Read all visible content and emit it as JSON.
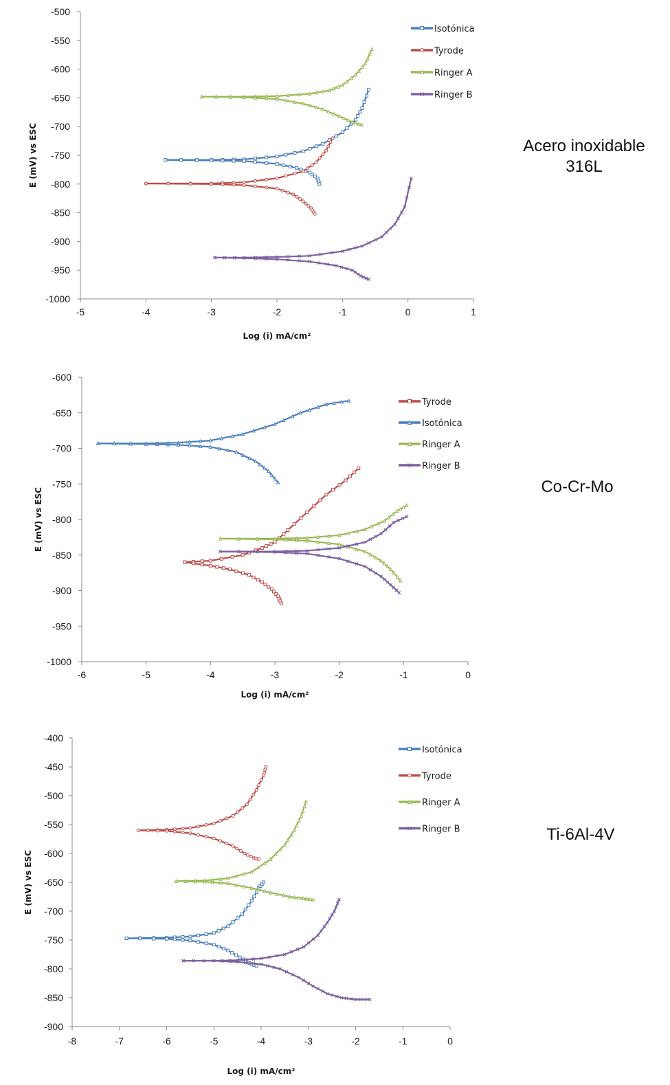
{
  "chart_data": [
    {
      "type": "line",
      "side_label_lines": [
        "Acero inoxidable",
        "316L"
      ],
      "xlabel": "Log (i) mA/cm²",
      "ylabel": "E (mV) vs ESC",
      "xlim": [
        -5,
        1
      ],
      "ylim": [
        -1000,
        -500
      ],
      "xticks": [
        -5,
        -4,
        -3,
        -2,
        -1,
        0,
        1
      ],
      "yticks": [
        -500,
        -550,
        -600,
        -650,
        -700,
        -750,
        -800,
        -850,
        -900,
        -950,
        -1000
      ],
      "grid": false,
      "legend_position": "top-right",
      "series": [
        {
          "name": "Isotónica",
          "color": "#4a7ebb",
          "marker": "square",
          "anodic": [
            [
              -3.7,
              -758
            ],
            [
              -3.0,
              -758
            ],
            [
              -2.5,
              -757
            ],
            [
              -2.0,
              -752
            ],
            [
              -1.6,
              -743
            ],
            [
              -1.3,
              -730
            ],
            [
              -1.0,
              -710
            ],
            [
              -0.8,
              -688
            ],
            [
              -0.7,
              -668
            ],
            [
              -0.6,
              -636
            ]
          ],
          "cathodic": [
            [
              -3.7,
              -758
            ],
            [
              -3.0,
              -759
            ],
            [
              -2.5,
              -760
            ],
            [
              -2.0,
              -765
            ],
            [
              -1.7,
              -772
            ],
            [
              -1.5,
              -780
            ],
            [
              -1.38,
              -790
            ],
            [
              -1.35,
              -800
            ]
          ]
        },
        {
          "name": "Tyrode",
          "color": "#be4b48",
          "marker": "circle",
          "anodic": [
            [
              -4.0,
              -799
            ],
            [
              -3.0,
              -799
            ],
            [
              -2.5,
              -797
            ],
            [
              -2.0,
              -790
            ],
            [
              -1.6,
              -778
            ],
            [
              -1.4,
              -762
            ],
            [
              -1.25,
              -742
            ],
            [
              -1.15,
              -720
            ]
          ],
          "cathodic": [
            [
              -4.0,
              -799
            ],
            [
              -3.0,
              -800
            ],
            [
              -2.5,
              -802
            ],
            [
              -2.0,
              -808
            ],
            [
              -1.75,
              -818
            ],
            [
              -1.6,
              -830
            ],
            [
              -1.48,
              -842
            ],
            [
              -1.42,
              -852
            ]
          ]
        },
        {
          "name": "Ringer A",
          "color": "#98b954",
          "marker": "triangle",
          "anodic": [
            [
              -3.15,
              -648
            ],
            [
              -2.5,
              -648
            ],
            [
              -2.0,
              -647
            ],
            [
              -1.5,
              -643
            ],
            [
              -1.2,
              -637
            ],
            [
              -1.0,
              -628
            ],
            [
              -0.8,
              -610
            ],
            [
              -0.65,
              -590
            ],
            [
              -0.55,
              -565
            ]
          ],
          "cathodic": [
            [
              -3.15,
              -648
            ],
            [
              -2.5,
              -649
            ],
            [
              -2.0,
              -652
            ],
            [
              -1.6,
              -660
            ],
            [
              -1.3,
              -670
            ],
            [
              -1.05,
              -682
            ],
            [
              -0.85,
              -692
            ],
            [
              -0.7,
              -697
            ]
          ]
        },
        {
          "name": "Ringer B",
          "color": "#7d60a0",
          "marker": "x",
          "anodic": [
            [
              -2.95,
              -928
            ],
            [
              -2.5,
              -928
            ],
            [
              -2.0,
              -927
            ],
            [
              -1.5,
              -925
            ],
            [
              -1.0,
              -917
            ],
            [
              -0.7,
              -908
            ],
            [
              -0.4,
              -892
            ],
            [
              -0.2,
              -870
            ],
            [
              -0.05,
              -840
            ],
            [
              0.05,
              -790
            ]
          ],
          "cathodic": [
            [
              -2.95,
              -928
            ],
            [
              -2.5,
              -929
            ],
            [
              -2.0,
              -931
            ],
            [
              -1.5,
              -935
            ],
            [
              -1.1,
              -942
            ],
            [
              -0.85,
              -950
            ],
            [
              -0.72,
              -960
            ],
            [
              -0.6,
              -966
            ]
          ]
        }
      ]
    },
    {
      "type": "line",
      "side_label_lines": [
        "Co-Cr-Mo"
      ],
      "xlabel": "Log (i) mA/cm²",
      "ylabel": "E (mV) vs ESC",
      "xlim": [
        -6,
        0
      ],
      "ylim": [
        -1000,
        -600
      ],
      "xticks": [
        -6,
        -5,
        -4,
        -3,
        -2,
        -1,
        0
      ],
      "yticks": [
        -600,
        -650,
        -700,
        -750,
        -800,
        -850,
        -900,
        -950,
        -1000
      ],
      "grid": false,
      "legend_position": "top-right",
      "series": [
        {
          "name": "Tyrode",
          "color": "#be4b48",
          "marker": "square",
          "anodic": [
            [
              -4.4,
              -860
            ],
            [
              -4.0,
              -858
            ],
            [
              -3.5,
              -850
            ],
            [
              -3.2,
              -840
            ],
            [
              -3.0,
              -832
            ],
            [
              -2.8,
              -815
            ],
            [
              -2.5,
              -790
            ],
            [
              -2.2,
              -765
            ],
            [
              -1.9,
              -745
            ],
            [
              -1.7,
              -728
            ]
          ],
          "cathodic": [
            [
              -4.4,
              -860
            ],
            [
              -4.0,
              -865
            ],
            [
              -3.7,
              -870
            ],
            [
              -3.4,
              -878
            ],
            [
              -3.2,
              -888
            ],
            [
              -3.05,
              -898
            ],
            [
              -2.95,
              -908
            ],
            [
              -2.9,
              -918
            ]
          ]
        },
        {
          "name": "Isotónica",
          "color": "#4a7ebb",
          "marker": "triangle",
          "anodic": [
            [
              -5.75,
              -693
            ],
            [
              -5.0,
              -693
            ],
            [
              -4.5,
              -692
            ],
            [
              -4.0,
              -689
            ],
            [
              -3.5,
              -680
            ],
            [
              -3.0,
              -666
            ],
            [
              -2.6,
              -650
            ],
            [
              -2.2,
              -638
            ],
            [
              -1.85,
              -633
            ]
          ],
          "cathodic": [
            [
              -5.75,
              -693
            ],
            [
              -5.0,
              -694
            ],
            [
              -4.5,
              -695
            ],
            [
              -4.0,
              -698
            ],
            [
              -3.6,
              -705
            ],
            [
              -3.3,
              -718
            ],
            [
              -3.1,
              -732
            ],
            [
              -2.95,
              -748
            ]
          ]
        },
        {
          "name": "Ringer A",
          "color": "#98b954",
          "marker": "triangle",
          "anodic": [
            [
              -3.85,
              -827
            ],
            [
              -3.0,
              -827
            ],
            [
              -2.5,
              -826
            ],
            [
              -2.0,
              -822
            ],
            [
              -1.6,
              -814
            ],
            [
              -1.3,
              -802
            ],
            [
              -1.1,
              -788
            ],
            [
              -0.95,
              -780
            ]
          ],
          "cathodic": [
            [
              -3.85,
              -827
            ],
            [
              -3.0,
              -828
            ],
            [
              -2.5,
              -830
            ],
            [
              -2.0,
              -835
            ],
            [
              -1.6,
              -845
            ],
            [
              -1.35,
              -858
            ],
            [
              -1.2,
              -870
            ],
            [
              -1.05,
              -886
            ]
          ]
        },
        {
          "name": "Ringer B",
          "color": "#7d60a0",
          "marker": "x",
          "anodic": [
            [
              -3.85,
              -845
            ],
            [
              -3.0,
              -845
            ],
            [
              -2.5,
              -844
            ],
            [
              -2.0,
              -840
            ],
            [
              -1.6,
              -832
            ],
            [
              -1.35,
              -820
            ],
            [
              -1.15,
              -804
            ],
            [
              -0.95,
              -796
            ]
          ],
          "cathodic": [
            [
              -3.85,
              -845
            ],
            [
              -3.0,
              -846
            ],
            [
              -2.5,
              -848
            ],
            [
              -2.0,
              -855
            ],
            [
              -1.6,
              -866
            ],
            [
              -1.35,
              -880
            ],
            [
              -1.2,
              -892
            ],
            [
              -1.07,
              -903
            ]
          ]
        }
      ]
    },
    {
      "type": "line",
      "side_label_lines": [
        "Ti-6Al-4V"
      ],
      "xlabel": "Log (i) mA/cm²",
      "ylabel": "E (mV) vs ESC",
      "xlim": [
        -8,
        0
      ],
      "ylim": [
        -900,
        -400
      ],
      "xticks": [
        -8,
        -7,
        -6,
        -5,
        -4,
        -3,
        -2,
        -1,
        0
      ],
      "yticks": [
        -400,
        -450,
        -500,
        -550,
        -600,
        -650,
        -700,
        -750,
        -800,
        -850,
        -900
      ],
      "grid": false,
      "legend_position": "top-right",
      "series": [
        {
          "name": "Isotónica",
          "color": "#4a7ebb",
          "marker": "square",
          "anodic": [
            [
              -6.85,
              -747
            ],
            [
              -6.0,
              -746
            ],
            [
              -5.5,
              -744
            ],
            [
              -5.0,
              -738
            ],
            [
              -4.7,
              -726
            ],
            [
              -4.4,
              -705
            ],
            [
              -4.2,
              -682
            ],
            [
              -4.05,
              -660
            ],
            [
              -3.95,
              -650
            ]
          ],
          "cathodic": [
            [
              -6.85,
              -747
            ],
            [
              -6.0,
              -748
            ],
            [
              -5.5,
              -751
            ],
            [
              -5.0,
              -758
            ],
            [
              -4.7,
              -768
            ],
            [
              -4.45,
              -780
            ],
            [
              -4.25,
              -790
            ],
            [
              -4.1,
              -795
            ]
          ]
        },
        {
          "name": "Tyrode",
          "color": "#be4b48",
          "marker": "circle",
          "anodic": [
            [
              -6.6,
              -560
            ],
            [
              -6.0,
              -559
            ],
            [
              -5.5,
              -556
            ],
            [
              -5.0,
              -548
            ],
            [
              -4.6,
              -535
            ],
            [
              -4.3,
              -515
            ],
            [
              -4.1,
              -490
            ],
            [
              -3.95,
              -465
            ],
            [
              -3.9,
              -450
            ]
          ],
          "cathodic": [
            [
              -6.6,
              -560
            ],
            [
              -6.0,
              -561
            ],
            [
              -5.5,
              -565
            ],
            [
              -5.0,
              -574
            ],
            [
              -4.6,
              -587
            ],
            [
              -4.35,
              -600
            ],
            [
              -4.15,
              -608
            ],
            [
              -4.05,
              -610
            ]
          ]
        },
        {
          "name": "Ringer A",
          "color": "#98b954",
          "marker": "triangle",
          "anodic": [
            [
              -5.8,
              -648
            ],
            [
              -5.2,
              -647
            ],
            [
              -4.7,
              -643
            ],
            [
              -4.2,
              -632
            ],
            [
              -3.8,
              -610
            ],
            [
              -3.5,
              -585
            ],
            [
              -3.3,
              -560
            ],
            [
              -3.15,
              -535
            ],
            [
              -3.05,
              -510
            ]
          ],
          "cathodic": [
            [
              -5.8,
              -648
            ],
            [
              -5.2,
              -649
            ],
            [
              -4.7,
              -652
            ],
            [
              -4.2,
              -660
            ],
            [
              -3.8,
              -668
            ],
            [
              -3.4,
              -675
            ],
            [
              -3.1,
              -678
            ],
            [
              -2.9,
              -680
            ]
          ]
        },
        {
          "name": "Ringer B",
          "color": "#7d60a0",
          "marker": "x",
          "anodic": [
            [
              -5.65,
              -786
            ],
            [
              -5.0,
              -786
            ],
            [
              -4.5,
              -785
            ],
            [
              -4.0,
              -782
            ],
            [
              -3.5,
              -775
            ],
            [
              -3.1,
              -762
            ],
            [
              -2.8,
              -742
            ],
            [
              -2.6,
              -720
            ],
            [
              -2.45,
              -700
            ],
            [
              -2.35,
              -680
            ]
          ],
          "cathodic": [
            [
              -5.65,
              -786
            ],
            [
              -5.0,
              -786
            ],
            [
              -4.5,
              -788
            ],
            [
              -4.0,
              -792
            ],
            [
              -3.6,
              -800
            ],
            [
              -3.2,
              -815
            ],
            [
              -2.9,
              -830
            ],
            [
              -2.6,
              -843
            ],
            [
              -2.3,
              -850
            ],
            [
              -2.0,
              -853
            ],
            [
              -1.7,
              -853
            ]
          ]
        }
      ]
    }
  ]
}
